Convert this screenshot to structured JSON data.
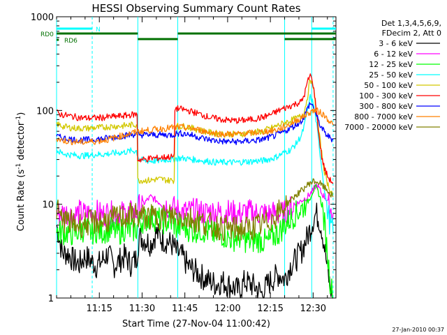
{
  "chart_data": {
    "type": "line",
    "title": "HESSI Observing Summary Count Rates",
    "xlabel": "Start Time (27-Nov-04 11:00:42)",
    "ylabel": "Count Rate (s⁻¹ detector⁻¹)",
    "ylabel_parts": [
      "Count Rate (s",
      "-1",
      " detector",
      "-1",
      ")"
    ],
    "yscale": "log",
    "ylim": [
      1,
      1000
    ],
    "xlim_minutes": [
      0,
      98
    ],
    "x_start": "11:00:42",
    "x_tick_labels": [
      "11:15",
      "11:30",
      "11:45",
      "12:00",
      "12:15",
      "12:30"
    ],
    "x_ticks_minutes": [
      15,
      30,
      45,
      60,
      75,
      90
    ],
    "y_tick_labels": [
      "1",
      "10",
      "100",
      "1000"
    ],
    "y_ticks": [
      1,
      10,
      100,
      1000
    ],
    "footer_date": "27-Jan-2010 00:37",
    "legend_header": [
      "Det 1,3,4,5,6,9,",
      "FDecim 2, Att 0"
    ],
    "legend_position": "right",
    "flags": [
      {
        "name": "N",
        "color": "#00ffff",
        "segments": [
          [
            0,
            12.5
          ],
          [
            89.5,
            98
          ]
        ]
      },
      {
        "name": "RD0",
        "color": "#007000",
        "segments": [
          [
            0,
            28.5
          ],
          [
            42.5,
            80
          ],
          [
            80,
            98
          ]
        ]
      },
      {
        "name": "RD6",
        "color": "#007000",
        "segments": [
          [
            0,
            0.8
          ]
        ]
      }
    ],
    "flag_labels": [
      "N",
      "RD0",
      "RD6"
    ],
    "vlines_solid_minutes": [
      0,
      28.5,
      42.5,
      80,
      89.5
    ],
    "vlines_dashed_minutes": [
      12.5,
      97
    ],
    "series": [
      {
        "name": "3 - 6 keV",
        "color": "#000000",
        "x": [
          0,
          2,
          4,
          6,
          8,
          10,
          12,
          14,
          16,
          18,
          20,
          22,
          24,
          26,
          28,
          29,
          31,
          33,
          35,
          37,
          39,
          41,
          42,
          44,
          46,
          48,
          50,
          52,
          54,
          56,
          58,
          60,
          62,
          64,
          66,
          68,
          70,
          72,
          74,
          76,
          78,
          80,
          82,
          84,
          86,
          88,
          89,
          90,
          91,
          92,
          93,
          94,
          95,
          96,
          97
        ],
        "y": [
          6,
          3,
          3,
          2.5,
          2.3,
          2.8,
          2.5,
          2.2,
          2.5,
          3,
          2.2,
          2.5,
          2.8,
          2.3,
          2.6,
          4.5,
          4.2,
          3.8,
          5,
          4.2,
          4,
          3.6,
          3.1,
          2.8,
          2.2,
          2.0,
          1.8,
          1.6,
          1.5,
          1.4,
          1.5,
          1.4,
          1.3,
          1.2,
          1.5,
          1.4,
          1.3,
          1.1,
          1.4,
          1.6,
          1.8,
          1.6,
          2.2,
          2.6,
          3.2,
          4.5,
          5.5,
          6.8,
          8,
          7,
          5.5,
          3.5,
          2,
          1.3,
          1
        ]
      },
      {
        "name": "6 - 12 keV",
        "color": "#ff00ff",
        "x": [
          0,
          2,
          4,
          6,
          8,
          10,
          12,
          14,
          16,
          18,
          20,
          22,
          24,
          26,
          28,
          29,
          31,
          33,
          35,
          37,
          39,
          41,
          42,
          44,
          46,
          48,
          50,
          52,
          54,
          56,
          58,
          60,
          62,
          64,
          66,
          68,
          70,
          72,
          74,
          76,
          78,
          80,
          82,
          84,
          86,
          88,
          89,
          90,
          91,
          92,
          93,
          94,
          95,
          96,
          97
        ],
        "y": [
          8,
          8,
          8,
          7.5,
          8.2,
          7.8,
          8,
          8.2,
          7.6,
          8.1,
          7.8,
          8,
          7.9,
          8.1,
          8,
          9.5,
          10.5,
          12,
          11,
          10,
          9.5,
          9.2,
          8.6,
          8.4,
          8.2,
          8.5,
          8.3,
          8.1,
          8.4,
          8.2,
          8,
          8.3,
          8.1,
          7.9,
          8.2,
          8.3,
          8,
          8.1,
          7.8,
          8,
          7.8,
          8,
          9,
          10,
          11,
          12,
          13,
          14,
          16,
          15,
          13,
          12,
          11,
          9,
          8
        ]
      },
      {
        "name": "12 - 25 keV",
        "color": "#00ff00",
        "x": [
          0,
          2,
          4,
          6,
          8,
          10,
          12,
          14,
          16,
          18,
          20,
          22,
          24,
          26,
          28,
          29,
          31,
          33,
          35,
          37,
          39,
          41,
          42,
          44,
          46,
          48,
          50,
          52,
          54,
          56,
          58,
          60,
          62,
          64,
          66,
          68,
          70,
          72,
          74,
          76,
          78,
          80,
          82,
          84,
          86,
          88,
          89,
          90,
          91,
          92,
          93,
          94,
          95,
          96,
          97
        ],
        "y": [
          5,
          5,
          5,
          4.8,
          5.2,
          5.5,
          5,
          5.3,
          5.1,
          5.4,
          5.2,
          5,
          5.5,
          5.2,
          5.4,
          6.5,
          6.8,
          7.2,
          7,
          6.6,
          6.5,
          6.4,
          5.6,
          5.8,
          5.5,
          5.2,
          5.4,
          5.2,
          5,
          4.6,
          4.8,
          4.4,
          4.3,
          4.5,
          4.2,
          4.0,
          4.2,
          4.1,
          3.9,
          4.5,
          5,
          6,
          7,
          8,
          9,
          10.5,
          12,
          14,
          15,
          13,
          10,
          6,
          3,
          1.5,
          1
        ]
      },
      {
        "name": "25 - 50 keV",
        "color": "#00ffff",
        "x": [
          0,
          1,
          2,
          4,
          6,
          8,
          10,
          12,
          14,
          16,
          18,
          20,
          22,
          24,
          26,
          28,
          29,
          31,
          33,
          35,
          37,
          39,
          41,
          42,
          44,
          46,
          48,
          50,
          52,
          54,
          56,
          58,
          60,
          62,
          64,
          66,
          68,
          70,
          72,
          74,
          76,
          78,
          80,
          82,
          84,
          86,
          87,
          88,
          89,
          90,
          91,
          92,
          93,
          94,
          95,
          96,
          97
        ],
        "y": [
          38,
          36,
          35,
          34,
          33.5,
          33,
          33,
          33.5,
          34,
          34,
          34.5,
          35,
          35.5,
          36,
          37,
          37,
          30,
          29,
          29,
          29,
          29.5,
          30,
          30,
          31,
          31,
          30.5,
          30,
          29.5,
          29,
          28.5,
          28,
          28,
          28,
          28,
          28,
          28.5,
          28.5,
          29,
          29,
          30,
          31,
          33,
          36,
          38,
          44,
          55,
          70,
          100,
          140,
          120,
          80,
          45,
          25,
          14,
          9,
          6,
          5
        ]
      },
      {
        "name": "50 - 100 keV",
        "color": "#d2c800",
        "x": [
          0,
          1,
          2,
          4,
          6,
          8,
          10,
          12,
          14,
          16,
          18,
          20,
          22,
          24,
          26,
          28,
          29,
          31,
          33,
          35,
          37,
          39,
          41,
          42,
          44,
          46,
          48,
          50,
          52,
          54,
          56,
          58,
          60,
          62,
          64,
          66,
          68,
          70,
          72,
          74,
          76,
          78,
          80,
          82,
          84,
          86,
          87,
          88,
          89,
          90,
          91,
          92,
          93,
          94,
          95,
          96,
          97
        ],
        "y": [
          72,
          70,
          68,
          66,
          65,
          64.5,
          64.5,
          65,
          65.5,
          66,
          67,
          68,
          68,
          69,
          70,
          71,
          18,
          18,
          18,
          18.5,
          18.5,
          18,
          18,
          68,
          68,
          67,
          64,
          62,
          60,
          58,
          57,
          56,
          56,
          56,
          56,
          57,
          58,
          59,
          60,
          63,
          66,
          70,
          74,
          78,
          82,
          88,
          100,
          140,
          220,
          180,
          110,
          60,
          35,
          22,
          17,
          14,
          13
        ]
      },
      {
        "name": "100 - 300 keV",
        "color": "#ff0000",
        "x": [
          0,
          1,
          2,
          4,
          6,
          8,
          10,
          12,
          14,
          16,
          18,
          20,
          22,
          24,
          26,
          28,
          29,
          31,
          33,
          35,
          37,
          39,
          41,
          42,
          44,
          46,
          48,
          50,
          52,
          54,
          56,
          58,
          60,
          62,
          64,
          66,
          68,
          70,
          72,
          74,
          76,
          78,
          80,
          82,
          84,
          86,
          87,
          88,
          89,
          90,
          91,
          92,
          93,
          94,
          95,
          96,
          97
        ],
        "y": [
          95,
          92,
          90,
          88,
          86,
          84,
          83,
          83,
          83.5,
          84,
          85,
          86,
          87,
          88,
          90,
          91,
          30,
          30,
          31,
          31,
          31.5,
          32,
          32,
          105,
          103,
          100,
          96,
          92,
          88,
          84,
          82,
          80,
          79,
          78,
          78,
          79,
          80,
          82,
          84,
          88,
          93,
          100,
          106,
          112,
          118,
          125,
          150,
          200,
          240,
          190,
          110,
          55,
          32,
          24,
          20,
          18,
          17
        ]
      },
      {
        "name": "300 - 800 keV",
        "color": "#0000ff",
        "x": [
          0,
          1,
          2,
          4,
          6,
          8,
          10,
          12,
          14,
          16,
          18,
          20,
          22,
          24,
          26,
          28,
          29,
          31,
          33,
          35,
          37,
          39,
          41,
          42,
          44,
          46,
          48,
          50,
          52,
          54,
          56,
          58,
          60,
          62,
          64,
          66,
          68,
          70,
          72,
          74,
          76,
          78,
          80,
          82,
          84,
          86,
          87,
          88,
          89,
          90,
          91,
          92,
          93,
          94,
          95,
          96,
          97
        ],
        "y": [
          53,
          52,
          51,
          50,
          49,
          48.5,
          48.5,
          49,
          49.5,
          50,
          51,
          52,
          53,
          54,
          55,
          56,
          55,
          55,
          55,
          55,
          55,
          55,
          55,
          57,
          57,
          56,
          54,
          52,
          50,
          48.5,
          47.5,
          47,
          46.5,
          46.5,
          46.5,
          47,
          47.5,
          48,
          49,
          51,
          53,
          56,
          60,
          65,
          70,
          78,
          88,
          105,
          120,
          110,
          90,
          75,
          65,
          58,
          54,
          51,
          49
        ]
      },
      {
        "name": "800 - 7000 keV",
        "color": "#ff8000",
        "x": [
          0,
          1,
          2,
          4,
          6,
          8,
          10,
          12,
          14,
          16,
          18,
          20,
          22,
          24,
          26,
          28,
          29,
          31,
          33,
          35,
          37,
          39,
          41,
          42,
          44,
          46,
          48,
          50,
          52,
          54,
          56,
          58,
          60,
          62,
          64,
          66,
          68,
          70,
          72,
          74,
          76,
          78,
          80,
          82,
          84,
          86,
          87,
          88,
          89,
          90,
          91,
          92,
          93,
          94,
          95,
          96,
          97
        ],
        "y": [
          50,
          49,
          48,
          47,
          46.5,
          46,
          46,
          46.5,
          47,
          48,
          49,
          51,
          53,
          55,
          57,
          59,
          60,
          61,
          62,
          63,
          64,
          65,
          66,
          66,
          66,
          65,
          64,
          62,
          60,
          58,
          57,
          56,
          56,
          56,
          56,
          57,
          57.5,
          58,
          59,
          60,
          61,
          63,
          67,
          72,
          78,
          84,
          88,
          92,
          96,
          100,
          100,
          97,
          93,
          88,
          82,
          76,
          70
        ]
      },
      {
        "name": "7000 - 20000 keV",
        "color": "#808000",
        "x": [
          0,
          1,
          2,
          4,
          6,
          8,
          10,
          12,
          14,
          16,
          18,
          20,
          22,
          24,
          26,
          28,
          29,
          31,
          33,
          35,
          37,
          39,
          41,
          42,
          44,
          46,
          48,
          50,
          52,
          54,
          56,
          58,
          60,
          62,
          64,
          66,
          68,
          70,
          72,
          74,
          76,
          78,
          80,
          82,
          84,
          86,
          87,
          88,
          89,
          90,
          91,
          92,
          93,
          94,
          95,
          96,
          97
        ],
        "y": [
          9,
          7.5,
          7,
          6.5,
          6.2,
          6,
          6.2,
          6.4,
          6.5,
          6.6,
          6.8,
          7,
          7.2,
          7.4,
          7.6,
          7.8,
          7.4,
          7.3,
          7.2,
          7.3,
          7.4,
          7.5,
          7.6,
          7.5,
          7.3,
          7.1,
          6.9,
          6.6,
          6.3,
          6.0,
          5.8,
          5.6,
          5.5,
          5.4,
          5.4,
          5.5,
          5.6,
          5.8,
          6,
          6.5,
          7.2,
          8.2,
          9.5,
          11,
          12.5,
          14,
          15,
          16,
          17,
          17.5,
          17.5,
          17,
          16,
          15,
          14,
          13,
          12
        ]
      }
    ]
  }
}
